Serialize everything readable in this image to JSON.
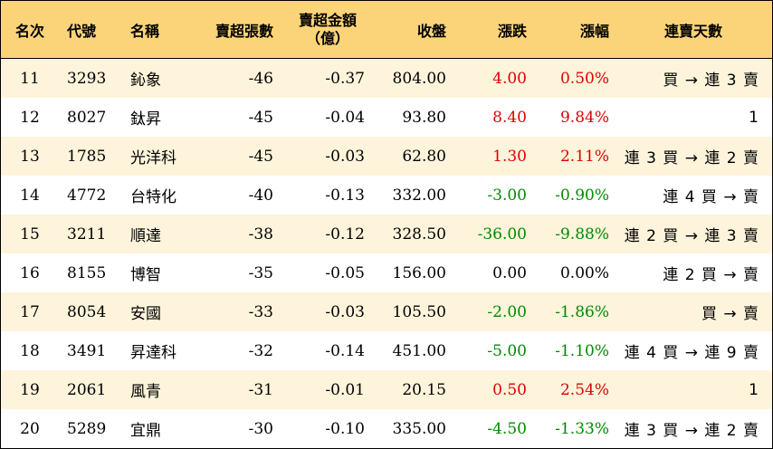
{
  "headers": {
    "rank": "名次",
    "code": "代號",
    "name": "名稱",
    "net_lots": "賣超張數",
    "net_amount_line1": "賣超金額",
    "net_amount_line2": "（億）",
    "close": "收盤",
    "change": "漲跌",
    "change_pct": "漲幅",
    "streak": "連賣天數"
  },
  "colors": {
    "header_bg": "#fbd47a",
    "stripe_bg": "#fdf4db",
    "up": "#e00000",
    "down": "#008a00",
    "flat": "#000000"
  },
  "rows": [
    {
      "rank": "11",
      "code": "3293",
      "name": "鈊象",
      "net_lots": "-46",
      "net_amount": "-0.37",
      "close": "804.00",
      "change": "4.00",
      "change_pct": "0.50%",
      "trend": "up",
      "streak": "買 → 連 3 賣"
    },
    {
      "rank": "12",
      "code": "8027",
      "name": "鈦昇",
      "net_lots": "-45",
      "net_amount": "-0.04",
      "close": "93.80",
      "change": "8.40",
      "change_pct": "9.84%",
      "trend": "up",
      "streak": "1"
    },
    {
      "rank": "13",
      "code": "1785",
      "name": "光洋科",
      "net_lots": "-45",
      "net_amount": "-0.03",
      "close": "62.80",
      "change": "1.30",
      "change_pct": "2.11%",
      "trend": "up",
      "streak": "連 3 買 → 連 2 賣"
    },
    {
      "rank": "14",
      "code": "4772",
      "name": "台特化",
      "net_lots": "-40",
      "net_amount": "-0.13",
      "close": "332.00",
      "change": "-3.00",
      "change_pct": "-0.90%",
      "trend": "down",
      "streak": "連 4 買 → 賣"
    },
    {
      "rank": "15",
      "code": "3211",
      "name": "順達",
      "net_lots": "-38",
      "net_amount": "-0.12",
      "close": "328.50",
      "change": "-36.00",
      "change_pct": "-9.88%",
      "trend": "down",
      "streak": "連 2 買 → 連 3 賣"
    },
    {
      "rank": "16",
      "code": "8155",
      "name": "博智",
      "net_lots": "-35",
      "net_amount": "-0.05",
      "close": "156.00",
      "change": "0.00",
      "change_pct": "0.00%",
      "trend": "flat",
      "streak": "連 2 買 → 賣"
    },
    {
      "rank": "17",
      "code": "8054",
      "name": "安國",
      "net_lots": "-33",
      "net_amount": "-0.03",
      "close": "105.50",
      "change": "-2.00",
      "change_pct": "-1.86%",
      "trend": "down",
      "streak": "買 → 賣"
    },
    {
      "rank": "18",
      "code": "3491",
      "name": "昇達科",
      "net_lots": "-32",
      "net_amount": "-0.14",
      "close": "451.00",
      "change": "-5.00",
      "change_pct": "-1.10%",
      "trend": "down",
      "streak": "連 4 買 → 連 9 賣"
    },
    {
      "rank": "19",
      "code": "2061",
      "name": "風青",
      "net_lots": "-31",
      "net_amount": "-0.01",
      "close": "20.15",
      "change": "0.50",
      "change_pct": "2.54%",
      "trend": "up",
      "streak": "1"
    },
    {
      "rank": "20",
      "code": "5289",
      "name": "宜鼎",
      "net_lots": "-30",
      "net_amount": "-0.10",
      "close": "335.00",
      "change": "-4.50",
      "change_pct": "-1.33%",
      "trend": "down",
      "streak": "連 3 買 → 連 2 賣"
    }
  ]
}
